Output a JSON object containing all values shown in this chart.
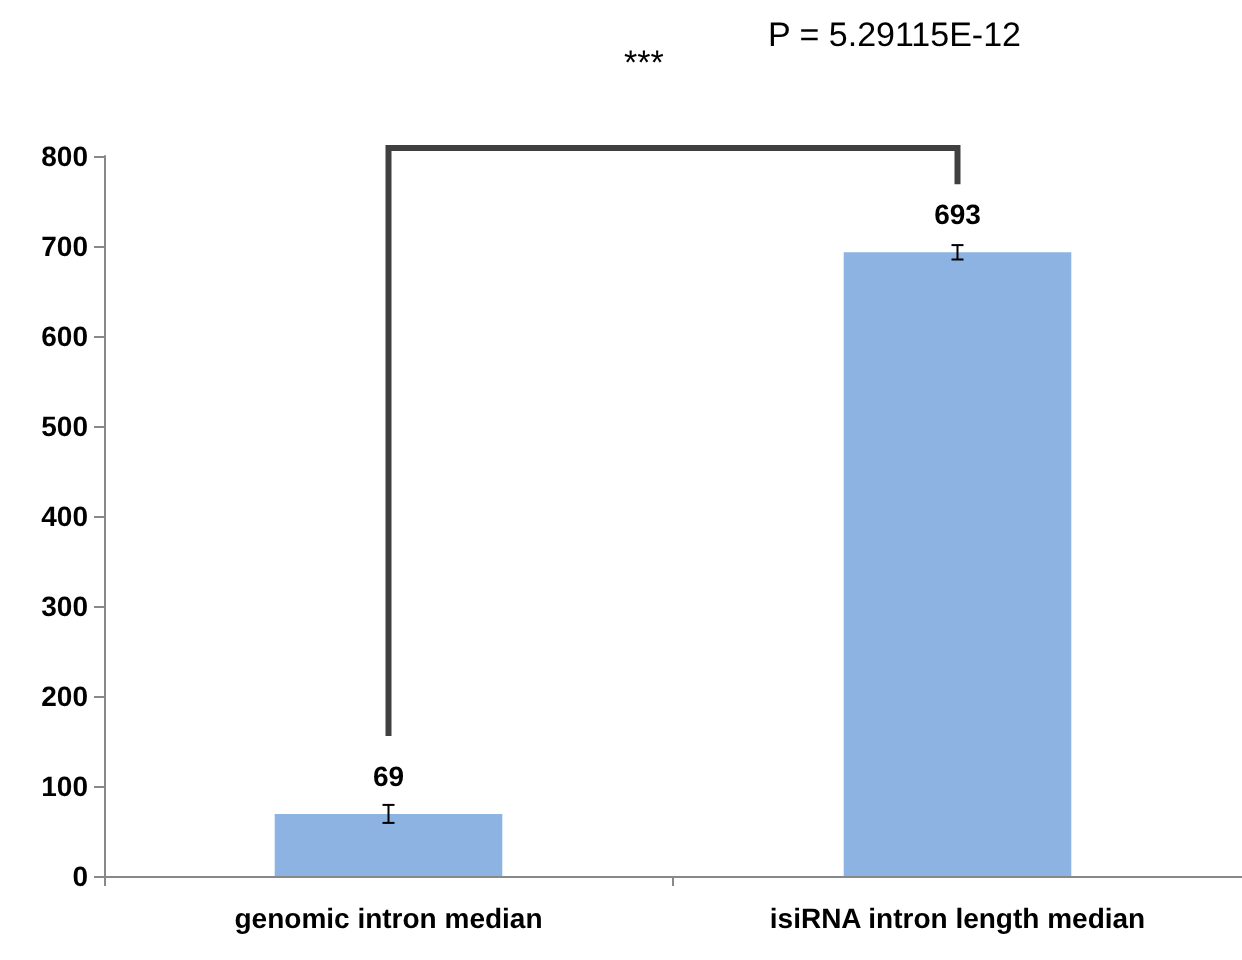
{
  "chart_data": {
    "type": "bar",
    "categories": [
      "genomic intron median",
      "isiRNA intron length median"
    ],
    "values": [
      69,
      693
    ],
    "errors": [
      10,
      8
    ],
    "color": "#8db3e2",
    "data_labels": true,
    "grid": false,
    "ylim": [
      0,
      800
    ],
    "yticks": [
      0,
      100,
      200,
      300,
      400,
      500,
      600,
      700,
      800
    ],
    "annotations": [
      "***",
      "P = 5.29115E-12"
    ]
  }
}
